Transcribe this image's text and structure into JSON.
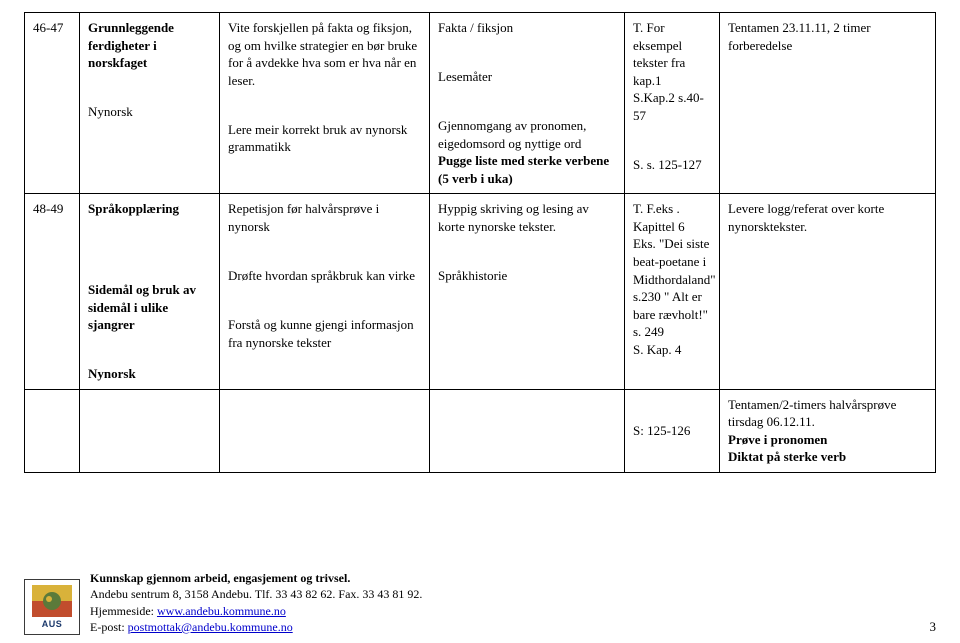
{
  "table": {
    "rows": [
      {
        "week": "46-47",
        "topic": [
          {
            "text": "Grunnleggende ferdigheter i norskfaget",
            "bold": true
          },
          {
            "text": "",
            "bold": false
          },
          {
            "text": "Nynorsk",
            "bold": false
          }
        ],
        "know": [
          {
            "text": "Vite forskjellen på fakta og fiksjon, og om hvilke strategier en bør bruke for å avdekke hva som er hva når en leser."
          },
          {
            "text": ""
          },
          {
            "text": "Lere meir korrekt bruk av nynorsk grammatikk"
          }
        ],
        "act": [
          {
            "text": "Fakta / fiksjon"
          },
          {
            "text": ""
          },
          {
            "text": "Lesemåter"
          },
          {
            "text": ""
          },
          {
            "text": "Gjennomgang av pronomen, eigedomsord og nyttige ord"
          },
          {
            "text": "Pugge liste med sterke verbene (5 verb i uka)",
            "bold": true
          }
        ],
        "ref": [
          {
            "text": "T. For eksempel tekster fra kap.1"
          },
          {
            "text": "S.Kap.2 s.40-57"
          },
          {
            "text": ""
          },
          {
            "text": "S. s. 125-127"
          }
        ],
        "note": [
          {
            "text": "Tentamen 23.11.11, 2 timer forberedelse"
          }
        ]
      },
      {
        "week": "48-49",
        "topic": [
          {
            "text": "Språkopplæring",
            "bold": true
          },
          {
            "text": "",
            "bold": false
          },
          {
            "text": "",
            "bold": false
          },
          {
            "text": "Sidemål og bruk av sidemål i ulike sjangrer",
            "bold": true
          },
          {
            "text": "",
            "bold": false
          },
          {
            "text": "Nynorsk",
            "bold": true
          }
        ],
        "know": [
          {
            "text": "Repetisjon før halvårsprøve i nynorsk"
          },
          {
            "text": ""
          },
          {
            "text": "Drøfte hvordan språkbruk kan virke"
          },
          {
            "text": ""
          },
          {
            "text": "Forstå og kunne gjengi informasjon fra nynorske tekster"
          }
        ],
        "act": [
          {
            "text": "Hyppig skriving og lesing av korte nynorske tekster."
          },
          {
            "text": ""
          },
          {
            "text": "Språkhistorie"
          }
        ],
        "ref": [
          {
            "text": "T. F.eks . Kapittel 6"
          },
          {
            "text": "Eks. \"Dei siste beat-poetane i Midthordaland\" s.230 \" Alt er bare rævholt!\" s. 249"
          },
          {
            "text": "S. Kap. 4"
          }
        ],
        "note": [
          {
            "text": "Levere logg/referat over korte nynorsktekster."
          }
        ]
      },
      {
        "week": "",
        "topic": [],
        "know": [],
        "act": [],
        "ref": [
          {
            "text": "S: 125-126"
          }
        ],
        "note": [
          {
            "text": "Tentamen/2-timers halvårsprøve tirsdag 06.12.11."
          },
          {
            "text": "Prøve i pronomen",
            "bold": true
          },
          {
            "text": "Diktat på sterke verb",
            "bold": true
          }
        ]
      }
    ]
  },
  "footer": {
    "line1": "Kunnskap gjennom arbeid, engasjement og trivsel.",
    "line2_a": "Andebu sentrum 8, 3158 Andebu. Tlf. 33 43 82 62. Fax. 33 43 81 92.",
    "line3_label": "Hjemmeside: ",
    "line3_link": "www.andebu.kommune.no",
    "line4_label": "E-post: ",
    "line4_link": "postmottak@andebu.kommune.no",
    "logo_text": "AUS"
  },
  "page_number": "3",
  "colors": {
    "border": "#000000",
    "link": "#0000cc",
    "logo_bg_top": "#d9b23a",
    "logo_bg_bottom": "#c14d2d",
    "logo_text": "#1a386b"
  }
}
